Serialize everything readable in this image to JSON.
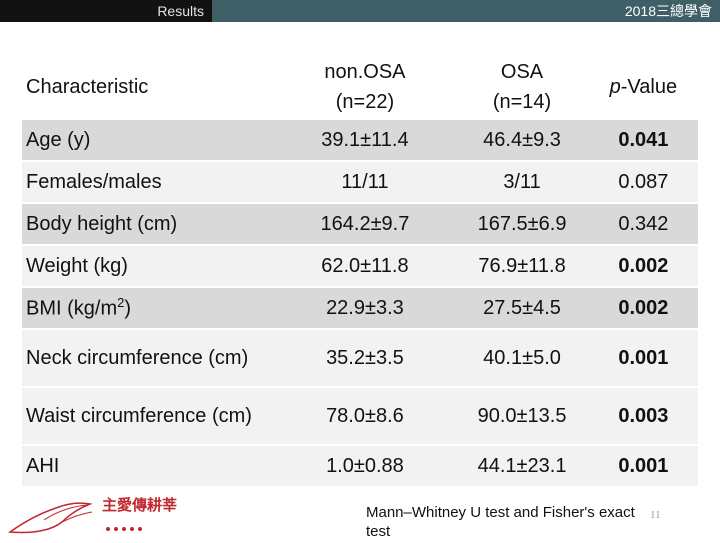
{
  "header": {
    "section": "Results",
    "conference": "2018三總學會"
  },
  "table": {
    "columns": [
      "Characteristic",
      "non.OSA",
      "(n=22)",
      "OSA",
      "(n=14)",
      "p",
      "-Value"
    ],
    "rows": [
      {
        "label": "Age (y)",
        "non_osa": "39.1±11.4",
        "osa": "46.4±9.3",
        "p": "0.041"
      },
      {
        "label": "Females/males",
        "non_osa": "11/11",
        "osa": "3/11",
        "p": "0.087"
      },
      {
        "label": "Body height (cm)",
        "non_osa": "164.2±9.7",
        "osa": "167.5±6.9",
        "p": "0.342"
      },
      {
        "label": "Weight (kg)",
        "non_osa": "62.0±11.8",
        "osa": "76.9±11.8",
        "p": "0.002"
      },
      {
        "label": "BMI (kg/m",
        "label_sup": "2",
        "label_end": ")",
        "non_osa": "22.9±3.3",
        "osa": "27.5±4.5",
        "p": "0.002"
      },
      {
        "label": "Neck circumference (cm)",
        "non_osa": "35.2±3.5",
        "osa": "40.1±5.0",
        "p": "0.001"
      },
      {
        "label": "Waist circumference (cm)",
        "non_osa": "78.0±8.6",
        "osa": "90.0±13.5",
        "p": "0.003"
      },
      {
        "label": "AHI",
        "non_osa": "1.0±0.88",
        "osa": "44.1±23.1",
        "p": "0.001"
      }
    ]
  },
  "footnote": "Mann–Whitney U test and Fisher's exact test",
  "page_number": "11",
  "logo": {
    "text": "主愛傳耕莘",
    "icon": "dove-logo-icon",
    "color": "#c0282d"
  }
}
